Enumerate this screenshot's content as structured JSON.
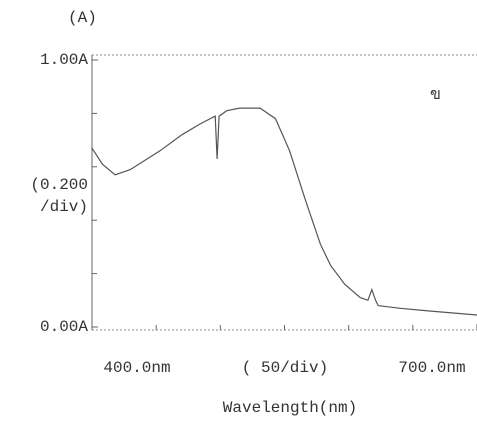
{
  "chart_data": {
    "type": "line",
    "panel_label": "(A)",
    "marker": "ข",
    "y_scale_label": [
      "(0.200",
      "/div)"
    ],
    "x_scale_label": "( 50/div)",
    "x_label": "Wavelength(nm)",
    "xlim": [
      400,
      700
    ],
    "ylim": [
      0,
      1
    ],
    "xticks": [
      {
        "value": 400,
        "label": "400.0nm"
      },
      {
        "value": 700,
        "label": "700.0nm"
      }
    ],
    "xminor": [
      450,
      500,
      550,
      600,
      650
    ],
    "yticks": [
      {
        "value": 0,
        "label": "0.00A"
      },
      {
        "value": 1,
        "label": "1.00A"
      }
    ],
    "yminor": [
      0.2,
      0.4,
      0.6,
      0.8
    ],
    "color": "#555",
    "x": [
      400,
      408,
      418,
      430,
      453,
      470,
      484,
      496,
      497.5,
      499,
      505,
      515,
      531,
      543,
      554,
      566,
      578,
      586,
      597,
      609,
      615,
      618,
      621,
      623,
      640,
      663,
      700
    ],
    "values": [
      0.67,
      0.61,
      0.57,
      0.59,
      0.66,
      0.72,
      0.76,
      0.79,
      0.63,
      0.79,
      0.81,
      0.82,
      0.82,
      0.78,
      0.66,
      0.48,
      0.31,
      0.23,
      0.16,
      0.11,
      0.1,
      0.14,
      0.1,
      0.08,
      0.07,
      0.06,
      0.045
    ]
  }
}
